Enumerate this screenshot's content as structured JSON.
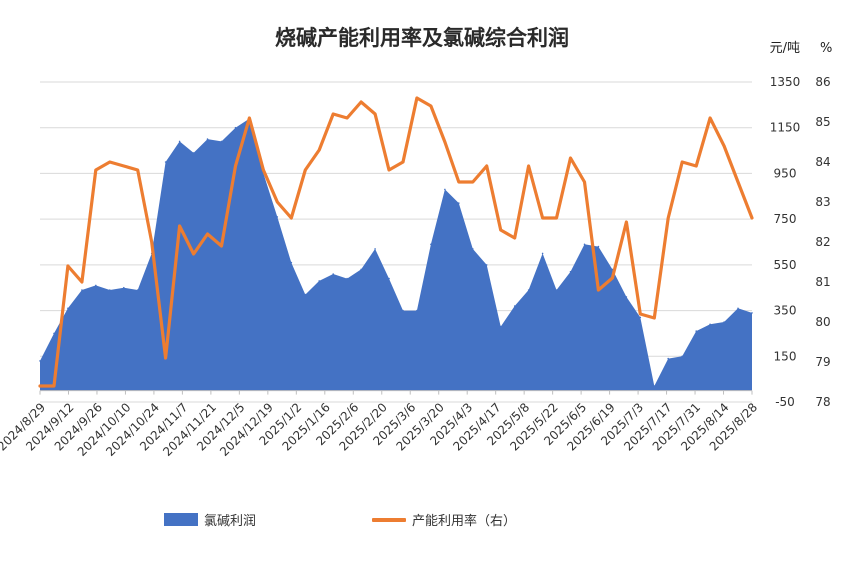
{
  "chart_data": {
    "type": "area",
    "title": "烧碱产能利用率及氯碱综合利润",
    "left_unit": "元/吨",
    "right_unit": "%",
    "left_ylim": [
      -50,
      1350
    ],
    "left_ticks": [
      -50,
      150,
      350,
      550,
      750,
      950,
      1150,
      1350
    ],
    "right_ylim": [
      78,
      86
    ],
    "right_ticks": [
      78,
      79,
      80,
      81,
      82,
      83,
      84,
      85,
      86
    ],
    "x_tick_labels": [
      "2024/8/29",
      "2024/9/12",
      "2024/9/26",
      "2024/10/10",
      "2024/10/24",
      "2024/11/7",
      "2024/11/21",
      "2024/12/5",
      "2024/12/19",
      "2025/1/2",
      "2025/1/16",
      "2025/2/6",
      "2025/2/20",
      "2025/3/6",
      "2025/3/20",
      "2025/4/3",
      "2025/4/17",
      "2025/5/8",
      "2025/5/22",
      "2025/6/5",
      "2025/6/19",
      "2025/7/3",
      "2025/7/17",
      "2025/7/31",
      "2025/8/14",
      "2025/8/28"
    ],
    "grid": "horizontal",
    "legend_position": "bottom",
    "series": [
      {
        "name": "氯碱利润",
        "kind": "area",
        "axis": "left",
        "color": "#4472C4",
        "values": [
          130,
          250,
          360,
          440,
          460,
          440,
          450,
          440,
          600,
          1000,
          1090,
          1040,
          1100,
          1090,
          1150,
          1190,
          950,
          760,
          560,
          420,
          480,
          510,
          490,
          530,
          620,
          490,
          350,
          350,
          640,
          880,
          820,
          620,
          550,
          280,
          370,
          440,
          600,
          440,
          520,
          640,
          630,
          530,
          410,
          320,
          20,
          140,
          150,
          260,
          290,
          300,
          360,
          340
        ]
      },
      {
        "name": "产能利用率（右）",
        "kind": "line",
        "axis": "right",
        "color": "#ED7D31",
        "values": [
          78.4,
          78.4,
          81.4,
          81.0,
          83.8,
          84.0,
          83.9,
          83.8,
          82.0,
          79.1,
          82.4,
          81.7,
          82.2,
          81.9,
          83.9,
          85.1,
          83.8,
          83.0,
          82.6,
          83.8,
          84.3,
          85.2,
          85.1,
          85.5,
          85.2,
          83.8,
          84.0,
          85.6,
          85.4,
          84.5,
          83.5,
          83.5,
          83.9,
          82.3,
          82.1,
          83.9,
          82.6,
          82.6,
          84.1,
          83.5,
          80.8,
          81.1,
          82.5,
          80.2,
          80.1,
          82.6,
          84.0,
          83.9,
          85.1,
          84.4,
          83.5,
          82.6
        ]
      }
    ]
  }
}
